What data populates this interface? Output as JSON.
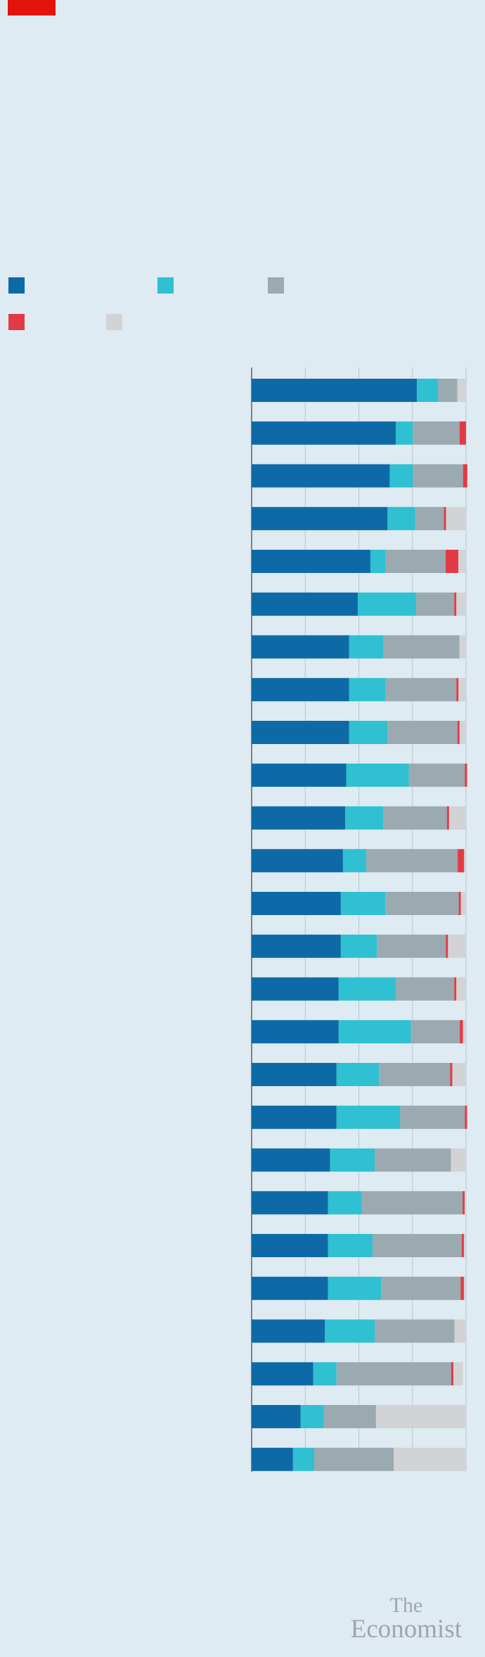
{
  "brand": {
    "logo_line1": "The",
    "logo_line2": "Economist",
    "tag_color": "#e3120b"
  },
  "colors": {
    "background": "#deebf2",
    "series": [
      "#0e6aa6",
      "#2fc0d1",
      "#9ba9b1",
      "#e23a44",
      "#d2d3d5"
    ],
    "gridline": "#b9c6cd",
    "axis": "#5c6164"
  },
  "chart_data": {
    "type": "bar",
    "orientation": "horizontal",
    "stacked": true,
    "title": "",
    "xlabel": "",
    "ylabel": "",
    "xlim": [
      0,
      100
    ],
    "grid": true,
    "legend_position": "top-left",
    "categories": [
      "",
      "",
      "",
      "",
      "",
      "",
      "",
      "",
      "",
      "",
      "",
      "",
      "",
      "",
      "",
      "",
      "",
      "",
      "",
      "",
      "",
      "",
      "",
      "",
      "",
      ""
    ],
    "series": [
      {
        "values": [
          77.1,
          67.3,
          64.4,
          63.4,
          55.4,
          49.5,
          45.5,
          45.5,
          45.5,
          44.1,
          43.6,
          42.6,
          41.6,
          41.6,
          40.6,
          40.6,
          39.6,
          39.6,
          36.6,
          35.6,
          35.6,
          35.6,
          34.2,
          28.7,
          22.8,
          19.3
        ]
      },
      {
        "values": [
          9.9,
          7.9,
          10.9,
          12.9,
          6.9,
          27.2,
          15.8,
          16.8,
          17.8,
          29.2,
          17.8,
          10.9,
          20.8,
          16.8,
          26.7,
          33.7,
          19.8,
          29.7,
          20.8,
          15.8,
          20.8,
          24.8,
          23.3,
          10.9,
          10.9,
          9.9
        ]
      },
      {
        "values": [
          8.9,
          21.8,
          23.3,
          13.4,
          28.2,
          17.8,
          35.6,
          33.2,
          32.7,
          26.2,
          29.7,
          42.6,
          34.2,
          32.2,
          27.2,
          22.8,
          33.2,
          30.2,
          35.6,
          47.0,
          41.6,
          37.1,
          37.1,
          53.5,
          24.3,
          37.1
        ]
      },
      {
        "values": [
          0,
          3.0,
          2.0,
          1.0,
          5.9,
          1.0,
          0,
          1.0,
          1.0,
          1.0,
          1.0,
          3.0,
          1.0,
          1.0,
          1.0,
          1.5,
          1.0,
          1.0,
          0,
          1.0,
          1.0,
          1.5,
          0,
          1.0,
          0,
          0
        ]
      },
      {
        "values": [
          4.1,
          0,
          0,
          9.3,
          3.6,
          4.5,
          3.1,
          3.5,
          3.0,
          0,
          7.9,
          1.0,
          2.4,
          8.4,
          4.5,
          1.4,
          6.4,
          0,
          7.0,
          0,
          1.0,
          1.0,
          5.4,
          4.5,
          42.0,
          33.7
        ]
      }
    ]
  }
}
